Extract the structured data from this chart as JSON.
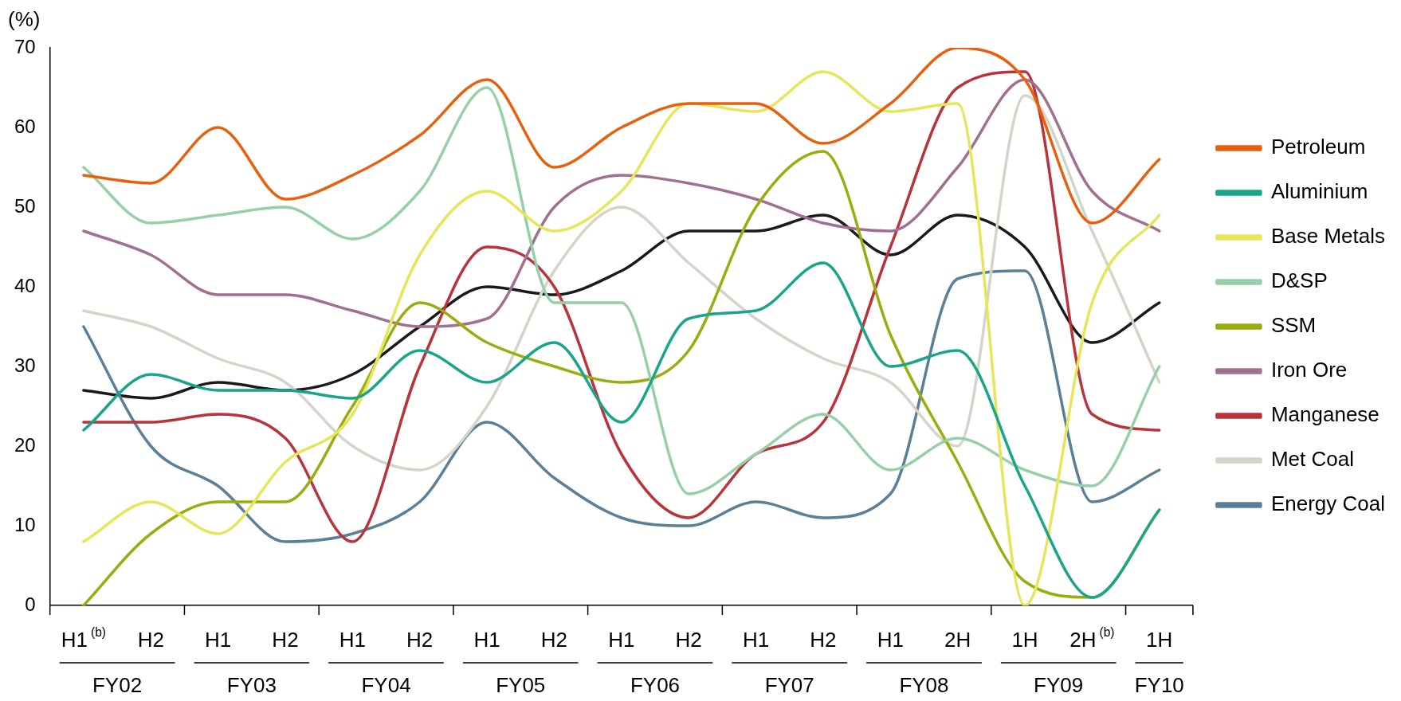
{
  "chart_data": {
    "type": "line",
    "ylabel": "(%)",
    "categories": [
      "H1$^{(b)}$",
      "H2",
      "H1",
      "H2",
      "H1",
      "H2",
      "H1",
      "H2",
      "H1",
      "H2",
      "H1",
      "H2",
      "H1",
      "2H",
      "1H",
      "2H$^{(b)}$",
      "1H"
    ],
    "annotations": [
      "FY02",
      "FY03",
      "FY04",
      "FY05",
      "FY06",
      "FY07",
      "FY08",
      "FY09",
      "FY10"
    ],
    "series": [
      {
        "name": "Petroleum",
        "color": "#e8600c",
        "values": [
          54,
          53,
          60,
          51,
          54,
          59,
          66,
          55,
          60,
          63,
          63,
          58,
          63,
          70,
          66,
          48,
          56
        ]
      },
      {
        "name": "Aluminium",
        "color": "#1aa58a",
        "values": [
          22,
          29,
          27,
          27,
          26,
          32,
          28,
          33,
          23,
          36,
          37,
          43,
          30,
          32,
          15,
          1,
          12
        ]
      },
      {
        "name": "Base Metals",
        "color": "#e6e65a",
        "values": [
          8,
          13,
          9,
          18,
          24,
          44,
          52,
          47,
          52,
          63,
          62,
          67,
          62,
          63,
          0,
          38,
          49
        ]
      },
      {
        "name": "D&SP",
        "color": "#96cfa8",
        "values": [
          55,
          48,
          49,
          50,
          46,
          52,
          65,
          38,
          38,
          14,
          19,
          24,
          17,
          21,
          17,
          15,
          30
        ]
      },
      {
        "name": "SSM",
        "color": "#9aad0e",
        "values": [
          0,
          9,
          13,
          13,
          25,
          38,
          33,
          30,
          28,
          32,
          50,
          57,
          34,
          18,
          3,
          1,
          12
        ]
      },
      {
        "name": "Iron Ore",
        "color": "#a07090",
        "values": [
          47,
          44,
          39,
          39,
          37,
          35,
          36,
          50,
          54,
          53,
          51,
          48,
          47,
          55,
          66,
          52,
          47
        ]
      },
      {
        "name": "Manganese",
        "color": "#b8333a",
        "values": [
          23,
          23,
          24,
          21,
          8,
          30,
          45,
          40,
          19,
          11,
          19,
          23,
          45,
          65,
          67,
          24,
          22
        ]
      },
      {
        "name": "Met Coal",
        "color": "#d4d4c8",
        "values": [
          37,
          35,
          31,
          28,
          20,
          17,
          25,
          42,
          50,
          43,
          36,
          31,
          28,
          20,
          64,
          47,
          28
        ]
      },
      {
        "name": "Energy Coal",
        "color": "#5a7f98",
        "values": [
          35,
          20,
          15,
          8,
          9,
          13,
          23,
          16,
          11,
          10,
          13,
          11,
          14,
          41,
          42,
          13,
          17
        ]
      },
      {
        "color": "#1a1a1a",
        "values": [
          27,
          26,
          28,
          27,
          29,
          35,
          40,
          39,
          42,
          47,
          47,
          49,
          44,
          49,
          45,
          33,
          38
        ]
      }
    ],
    "ylim": [
      0,
      70
    ],
    "yticks": [
      0,
      10,
      20,
      30,
      40,
      50,
      60,
      70
    ],
    "grid": false,
    "legend": "right",
    "marker": "none",
    "line_style": "solid"
  }
}
